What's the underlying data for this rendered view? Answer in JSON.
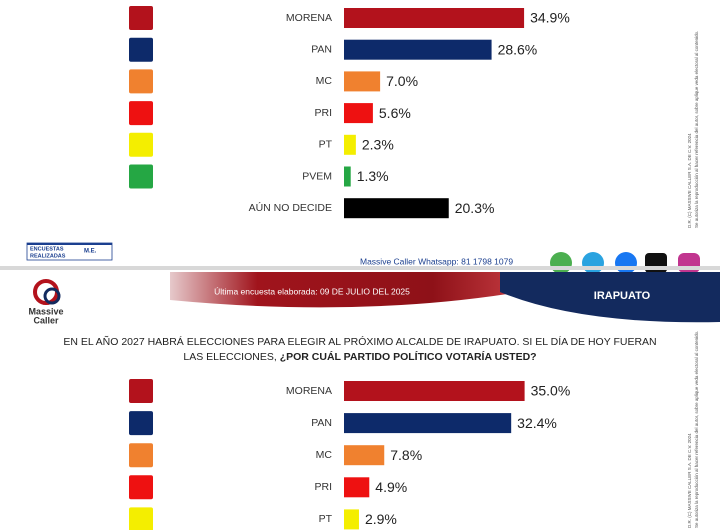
{
  "chart_data": [
    {
      "type": "bar",
      "categories": [
        "MORENA",
        "PAN",
        "MC",
        "PRI",
        "PT",
        "PVEM",
        "AÚN NO DECIDE"
      ],
      "values": [
        34.9,
        28.6,
        7.0,
        5.6,
        2.3,
        1.3,
        20.3
      ],
      "value_labels": [
        "34.9%",
        "28.6%",
        "7.0%",
        "5.6%",
        "2.3%",
        "1.3%",
        "20.3%"
      ],
      "colors": [
        "#b3121c",
        "#0d2a6a",
        "#f0812f",
        "#ee1111",
        "#f4ee00",
        "#25a744",
        "#000000"
      ]
    },
    {
      "type": "bar",
      "title": [
        "EN EL AÑO 2027 HABRÁ ELECCIONES PARA ELEGIR AL PRÓXIMO ALCALDE DE IRAPUATO. SI EL DÍA DE HOY FUERAN",
        "LAS ELECCIONES, ",
        "¿POR CUÁL PARTIDO POLÍTICO VOTARÍA USTED?"
      ],
      "categories": [
        "MORENA",
        "PAN",
        "MC",
        "PRI",
        "PT"
      ],
      "values": [
        35.0,
        32.4,
        7.8,
        4.9,
        2.9
      ],
      "value_labels": [
        "35.0%",
        "32.4%",
        "7.8%",
        "4.9%",
        "2.9%"
      ],
      "colors": [
        "#b3121c",
        "#0d2a6a",
        "#f0812f",
        "#ee1111",
        "#f4ee00"
      ]
    }
  ],
  "footer": {
    "surveys": [
      "ENCUESTAS",
      "REALIZADAS"
    ],
    "method": "M.E.",
    "whatsapp": "Massive Caller Whatsapp: 81 1798 1079"
  },
  "header": {
    "logo": [
      "Massive",
      "Caller"
    ],
    "date": "Última encuesta elaborada: 09 DE JULIO DEL 2025",
    "city": "IRAPUATO"
  },
  "side_notes": [
    "D.R. (C) MASSIVE CALLER S.A. DE C.V. 2024",
    "Se autoriza la reproducción al hacer referencia del autor, sobre aplique veda electoral al contenido."
  ]
}
